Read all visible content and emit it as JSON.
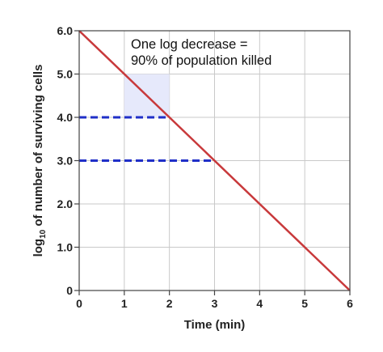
{
  "chart_data": {
    "type": "line",
    "xlabel": "Time (min)",
    "ylabel_prefix": "log",
    "ylabel_subscript": "10",
    "ylabel_suffix": " of number of surviving cells",
    "xlim": [
      0,
      6
    ],
    "ylim": [
      0,
      6
    ],
    "x_ticks": [
      0,
      1,
      2,
      3,
      4,
      5,
      6
    ],
    "x_tick_labels": [
      "0",
      "1",
      "2",
      "3",
      "4",
      "5",
      "6"
    ],
    "y_ticks": [
      0,
      1,
      2,
      3,
      4,
      5,
      6
    ],
    "y_tick_labels": [
      "0",
      "1.0",
      "2.0",
      "3.0",
      "4.0",
      "5.0",
      "6.0"
    ],
    "grid": true,
    "series": [
      {
        "x": [
          0,
          6
        ],
        "y": [
          6,
          0
        ],
        "color": "#c8393b"
      }
    ],
    "reference_lines": [
      {
        "y": 4,
        "x_from": 0,
        "x_to": 2,
        "style": "dashed",
        "color": "#1f2fc8"
      },
      {
        "y": 3,
        "x_from": 0,
        "x_to": 3,
        "style": "dashed",
        "color": "#1f2fc8"
      }
    ],
    "highlight_region": {
      "x": [
        1,
        2
      ],
      "y": [
        4,
        5
      ],
      "color": "#e6e9fb"
    },
    "annotation": {
      "lines": [
        "One log decrease =",
        "90% of population killed"
      ]
    },
    "colors": {
      "line": "#c8393b",
      "dashed": "#1f2fc8",
      "grid": "#c9c9c9",
      "axis": "#444444"
    }
  }
}
